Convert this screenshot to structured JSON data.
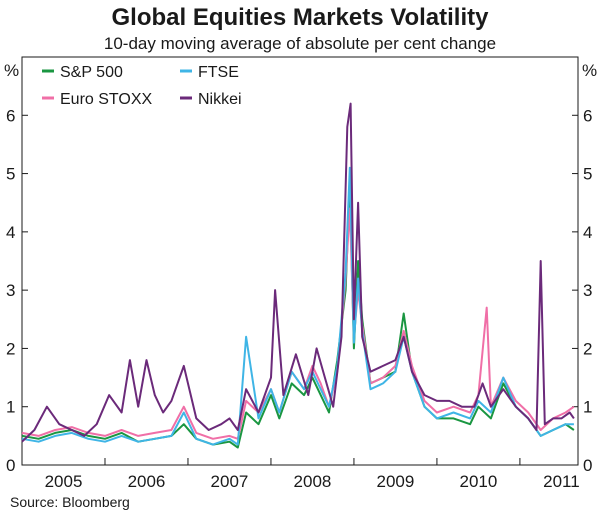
{
  "chart_data": {
    "type": "line",
    "title": "Global Equities Markets Volatility",
    "subtitle": "10-day moving average of absolute per cent change",
    "source": "Source: Bloomberg",
    "ylabel_left": "%",
    "ylabel_right": "%",
    "ylim": [
      0,
      7
    ],
    "yticks": [
      0,
      1,
      2,
      3,
      4,
      5,
      6
    ],
    "xlim": [
      2004.5,
      2011.2
    ],
    "xtick_labels": [
      "2005",
      "2006",
      "2007",
      "2008",
      "2009",
      "2010",
      "2011"
    ],
    "xtick_positions": [
      2005,
      2006,
      2007,
      2008,
      2009,
      2010,
      2011
    ],
    "year_boundaries": [
      2005.5,
      2006.5,
      2007.5,
      2008.5,
      2009.5,
      2010.5
    ],
    "series": [
      {
        "name": "S&P 500",
        "color": "#1a9641",
        "x": [
          2004.5,
          2004.7,
          2004.9,
          2005.1,
          2005.3,
          2005.5,
          2005.7,
          2005.9,
          2006.1,
          2006.3,
          2006.45,
          2006.6,
          2006.8,
          2007.0,
          2007.1,
          2007.2,
          2007.35,
          2007.5,
          2007.6,
          2007.75,
          2007.9,
          2008.0,
          2008.1,
          2008.2,
          2008.3,
          2008.4,
          2008.45,
          2008.5,
          2008.55,
          2008.6,
          2008.7,
          2008.85,
          2009.0,
          2009.1,
          2009.2,
          2009.35,
          2009.5,
          2009.7,
          2009.9,
          2010.0,
          2010.15,
          2010.3,
          2010.45,
          2010.6,
          2010.75,
          2010.9,
          2011.05,
          2011.15
        ],
        "values": [
          0.5,
          0.45,
          0.55,
          0.6,
          0.5,
          0.45,
          0.55,
          0.4,
          0.45,
          0.5,
          0.7,
          0.45,
          0.35,
          0.4,
          0.3,
          0.9,
          0.7,
          1.2,
          0.8,
          1.4,
          1.2,
          1.5,
          1.2,
          0.9,
          1.8,
          3.0,
          4.8,
          2.0,
          3.5,
          2.5,
          1.4,
          1.5,
          1.6,
          2.6,
          1.6,
          1.0,
          0.8,
          0.8,
          0.7,
          1.0,
          0.8,
          1.4,
          1.0,
          0.8,
          0.5,
          0.6,
          0.7,
          0.6
        ]
      },
      {
        "name": "Euro STOXX",
        "color": "#f06fa7",
        "x": [
          2004.5,
          2004.7,
          2004.9,
          2005.1,
          2005.3,
          2005.5,
          2005.7,
          2005.9,
          2006.1,
          2006.3,
          2006.45,
          2006.6,
          2006.8,
          2007.0,
          2007.1,
          2007.2,
          2007.35,
          2007.5,
          2007.6,
          2007.75,
          2007.9,
          2008.0,
          2008.1,
          2008.2,
          2008.3,
          2008.4,
          2008.45,
          2008.5,
          2008.55,
          2008.6,
          2008.7,
          2008.85,
          2009.0,
          2009.1,
          2009.2,
          2009.35,
          2009.5,
          2009.7,
          2009.9,
          2010.0,
          2010.1,
          2010.15,
          2010.3,
          2010.45,
          2010.6,
          2010.75,
          2010.9,
          2011.05,
          2011.15
        ],
        "values": [
          0.55,
          0.5,
          0.6,
          0.65,
          0.55,
          0.5,
          0.6,
          0.5,
          0.55,
          0.6,
          1.0,
          0.55,
          0.45,
          0.5,
          0.45,
          1.1,
          0.9,
          1.3,
          0.9,
          1.6,
          1.3,
          1.7,
          1.4,
          1.0,
          1.6,
          3.2,
          4.4,
          2.2,
          3.0,
          2.4,
          1.4,
          1.5,
          1.7,
          2.3,
          1.7,
          1.1,
          0.9,
          1.0,
          0.9,
          1.2,
          2.7,
          1.0,
          1.5,
          1.1,
          0.9,
          0.6,
          0.8,
          0.9,
          1.0
        ]
      },
      {
        "name": "FTSE",
        "color": "#3fb5e6",
        "x": [
          2004.5,
          2004.7,
          2004.9,
          2005.1,
          2005.3,
          2005.5,
          2005.7,
          2005.9,
          2006.1,
          2006.3,
          2006.45,
          2006.6,
          2006.8,
          2007.0,
          2007.1,
          2007.2,
          2007.35,
          2007.5,
          2007.6,
          2007.75,
          2007.9,
          2008.0,
          2008.1,
          2008.2,
          2008.3,
          2008.4,
          2008.45,
          2008.5,
          2008.55,
          2008.6,
          2008.7,
          2008.85,
          2009.0,
          2009.1,
          2009.2,
          2009.35,
          2009.5,
          2009.7,
          2009.9,
          2010.0,
          2010.15,
          2010.3,
          2010.45,
          2010.6,
          2010.75,
          2010.9,
          2011.05,
          2011.15
        ],
        "values": [
          0.45,
          0.4,
          0.5,
          0.55,
          0.45,
          0.4,
          0.5,
          0.4,
          0.45,
          0.5,
          0.9,
          0.45,
          0.35,
          0.45,
          0.35,
          2.2,
          0.8,
          1.3,
          0.9,
          1.6,
          1.3,
          1.6,
          1.3,
          1.0,
          1.7,
          3.3,
          5.1,
          2.1,
          3.2,
          2.3,
          1.3,
          1.4,
          1.6,
          2.2,
          1.6,
          1.0,
          0.8,
          0.9,
          0.8,
          1.1,
          0.9,
          1.5,
          1.0,
          0.8,
          0.5,
          0.6,
          0.7,
          0.7
        ]
      },
      {
        "name": "Nikkei",
        "color": "#6b2a7a",
        "x": [
          2004.5,
          2004.65,
          2004.8,
          2004.95,
          2005.1,
          2005.25,
          2005.4,
          2005.55,
          2005.7,
          2005.8,
          2005.9,
          2006.0,
          2006.1,
          2006.2,
          2006.3,
          2006.45,
          2006.6,
          2006.75,
          2006.9,
          2007.0,
          2007.1,
          2007.2,
          2007.35,
          2007.5,
          2007.55,
          2007.65,
          2007.8,
          2007.95,
          2008.05,
          2008.15,
          2008.25,
          2008.35,
          2008.42,
          2008.46,
          2008.5,
          2008.55,
          2008.6,
          2008.7,
          2008.85,
          2009.0,
          2009.1,
          2009.2,
          2009.35,
          2009.5,
          2009.65,
          2009.8,
          2009.95,
          2010.05,
          2010.15,
          2010.3,
          2010.45,
          2010.6,
          2010.7,
          2010.75,
          2010.8,
          2010.9,
          2011.0,
          2011.1,
          2011.15
        ],
        "values": [
          0.4,
          0.6,
          1.0,
          0.7,
          0.6,
          0.5,
          0.7,
          1.2,
          0.9,
          1.8,
          1.0,
          1.8,
          1.2,
          0.9,
          1.1,
          1.7,
          0.8,
          0.6,
          0.7,
          0.8,
          0.6,
          1.3,
          0.9,
          1.5,
          3.0,
          1.2,
          1.9,
          1.2,
          2.0,
          1.5,
          1.0,
          2.2,
          5.8,
          6.2,
          2.5,
          4.5,
          2.2,
          1.6,
          1.7,
          1.8,
          2.2,
          1.6,
          1.2,
          1.1,
          1.1,
          1.0,
          1.0,
          1.4,
          1.0,
          1.3,
          1.0,
          0.8,
          0.6,
          3.5,
          0.7,
          0.8,
          0.8,
          0.9,
          0.8
        ]
      }
    ],
    "legend": [
      {
        "label": "S&P 500",
        "color": "#1a9641"
      },
      {
        "label": "FTSE",
        "color": "#3fb5e6"
      },
      {
        "label": "Euro STOXX",
        "color": "#f06fa7"
      },
      {
        "label": "Nikkei",
        "color": "#6b2a7a"
      }
    ]
  }
}
